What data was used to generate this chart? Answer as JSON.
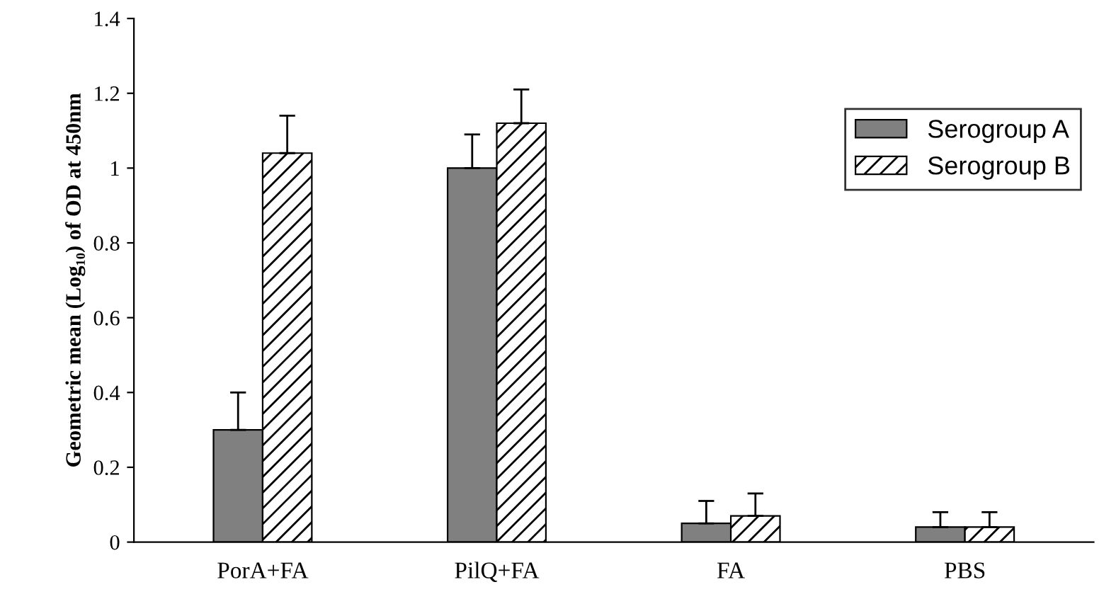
{
  "chart_data": {
    "type": "bar",
    "ylabel": "Geometric mean (Log₁₀) of OD at 450nm",
    "categories": [
      "PorA+FA",
      "PilQ+FA",
      "FA",
      "PBS"
    ],
    "series": [
      {
        "name": "Serogroup A",
        "color": "#808080",
        "values": [
          0.3,
          1.0,
          0.05,
          0.04
        ],
        "errors": [
          [
            0.3,
            0.4
          ],
          [
            1.0,
            1.09
          ],
          [
            0.05,
            0.11
          ],
          [
            0.04,
            0.08
          ]
        ]
      },
      {
        "name": "Serogroup B",
        "color": "#000000",
        "values": [
          1.04,
          1.12,
          0.07,
          0.04
        ],
        "errors": [
          [
            1.04,
            1.14
          ],
          [
            1.12,
            1.21
          ],
          [
            0.07,
            0.13
          ],
          [
            0.04,
            0.08
          ]
        ]
      }
    ],
    "ylim": [
      0,
      1.4
    ],
    "yticks": [
      0,
      0.2,
      0.4,
      0.6,
      0.8,
      1,
      1.2,
      1.4
    ],
    "grid": false,
    "legend": "right"
  }
}
